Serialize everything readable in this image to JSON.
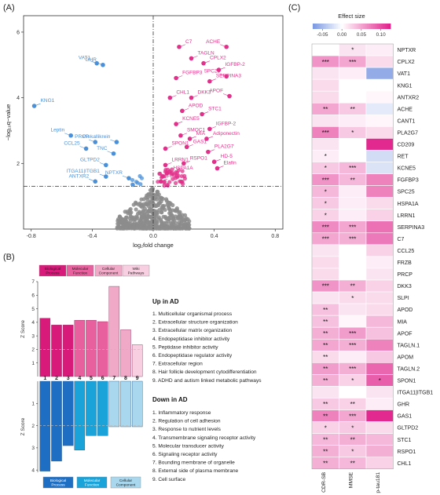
{
  "panel_labels": {
    "a": "(A)",
    "b": "(B)",
    "c": "(C)"
  },
  "colors": {
    "up": "#e0308a",
    "down": "#4a90d9",
    "ns": "#8c8c8c",
    "up_bars": [
      "#d81b7a",
      "#e8609d",
      "#f1a9c8",
      "#f7cfe0"
    ],
    "down_bars": [
      "#1e6fc4",
      "#1aa3d9",
      "#a9d8ee"
    ]
  },
  "chart_data": [
    {
      "panel": "A",
      "type": "scatter",
      "title": "",
      "xlabel": "log₂fold change",
      "ylabel": "−log₁₀q−value",
      "xlim": [
        -0.85,
        0.85
      ],
      "ylim": [
        0,
        6.5
      ],
      "xticks": [
        -0.8,
        -0.4,
        0.0,
        0.4,
        0.8
      ],
      "xtick_labels": [
        "-0.8",
        "-0.4",
        "0.0",
        "0.4",
        "0.8"
      ],
      "yticks": [
        2,
        4,
        6
      ],
      "ytick_labels": [
        "2",
        "4",
        "6"
      ],
      "threshold_y": 1.3,
      "threshold_x": 0,
      "points_up": [
        {
          "label": "C7",
          "x": 0.17,
          "y": 5.55
        },
        {
          "label": "ACHE",
          "x": 0.48,
          "y": 5.55
        },
        {
          "label": "CPLX2",
          "x": 0.33,
          "y": 5.05
        },
        {
          "label": "TAGLN",
          "x": 0.25,
          "y": 5.2
        },
        {
          "label": "IGFBP-2",
          "x": 0.43,
          "y": 4.85
        },
        {
          "label": "SPC25",
          "x": 0.48,
          "y": 4.65
        },
        {
          "label": "FGFBP3",
          "x": 0.15,
          "y": 4.6
        },
        {
          "label": "SERPINA3",
          "x": 0.37,
          "y": 4.5
        },
        {
          "label": "APOF",
          "x": 0.5,
          "y": 4.05
        },
        {
          "label": "CHL1",
          "x": 0.11,
          "y": 4.0
        },
        {
          "label": "DKK3",
          "x": 0.25,
          "y": 4.0
        },
        {
          "label": "APOD",
          "x": 0.19,
          "y": 3.6
        },
        {
          "label": "STC1",
          "x": 0.32,
          "y": 3.5
        },
        {
          "label": "KCNE5",
          "x": 0.15,
          "y": 3.2
        },
        {
          "label": "IGFBP-2",
          "x": 0.37,
          "y": 3.05
        },
        {
          "label": "SMOC1",
          "x": 0.18,
          "y": 2.85
        },
        {
          "label": "MIA",
          "x": 0.24,
          "y": 2.75
        },
        {
          "label": "Adiponectin",
          "x": 0.35,
          "y": 2.75
        },
        {
          "label": "SPON1",
          "x": 0.08,
          "y": 2.45
        },
        {
          "label": "GAS1",
          "x": 0.22,
          "y": 2.5
        },
        {
          "label": "PLA2G7",
          "x": 0.36,
          "y": 2.35
        },
        {
          "label": "LRRN1",
          "x": 0.08,
          "y": 1.95
        },
        {
          "label": "RSPO1",
          "x": 0.2,
          "y": 2.0
        },
        {
          "label": "HD-5",
          "x": 0.4,
          "y": 2.05
        },
        {
          "label": "Elafin",
          "x": 0.42,
          "y": 1.85
        },
        {
          "label": "HSPA1A",
          "x": 0.09,
          "y": 1.7
        },
        {
          "label": "FRZB",
          "x": 0.05,
          "y": 1.45
        }
      ],
      "points_down": [
        {
          "label": "KNG1",
          "x": -0.78,
          "y": 3.75
        },
        {
          "label": "VAT1",
          "x": -0.37,
          "y": 5.05
        },
        {
          "label": "GHR",
          "x": -0.33,
          "y": 5.0
        },
        {
          "label": "Prekallikrein",
          "x": -0.24,
          "y": 2.65
        },
        {
          "label": "Leptin",
          "x": -0.54,
          "y": 2.85
        },
        {
          "label": "PRCP",
          "x": -0.38,
          "y": 2.65
        },
        {
          "label": "CCL25",
          "x": -0.44,
          "y": 2.45
        },
        {
          "label": "TNC",
          "x": -0.26,
          "y": 2.3
        },
        {
          "label": "GLTPD2",
          "x": -0.31,
          "y": 1.95
        },
        {
          "label": "ITGA11|ITGB1",
          "x": -0.31,
          "y": 1.6
        },
        {
          "label": "ANTXR2",
          "x": -0.38,
          "y": 1.45
        },
        {
          "label": "NPTXR",
          "x": -0.16,
          "y": 1.55
        }
      ]
    },
    {
      "panel": "B",
      "type": "bar",
      "ylabel": "Z Score",
      "categories": [
        "1",
        "2",
        "3",
        "4",
        "5",
        "6",
        "7",
        "8",
        "9"
      ],
      "up": {
        "section_title": "Up in AD",
        "values": [
          4.3,
          3.8,
          3.8,
          4.15,
          4.15,
          4.05,
          6.65,
          3.45,
          2.35
        ],
        "class": [
          "Biological Process",
          "Biological Process",
          "Biological Process",
          "Molecular Function",
          "Molecular Function",
          "Molecular Function",
          "Cellular Component",
          "Cellular Component",
          "Wiki Pathways"
        ],
        "ylim": [
          0,
          7
        ],
        "yticks": [
          "1",
          "2",
          "3",
          "4",
          "5",
          "6",
          "7"
        ],
        "legend": [
          "Biological Process",
          "Molecular Function",
          "Cellular Component",
          "Wiki Pathways"
        ],
        "terms": [
          "1. Multicellular organismal process",
          "2. Extracellular structure organization",
          "3. Extracellular matrix organization",
          "4. Endopeptidase inhibitor activity",
          "5. Peptidase inhibitor activity",
          "6. Endopeptidase regulator activity",
          "7. Extracellular region",
          "8. Hair follicle development cytodifferentiation",
          "9. ADHD and autism linked metabolic pathways"
        ]
      },
      "down": {
        "section_title": "Down in AD",
        "values": [
          4.05,
          3.6,
          2.9,
          3.1,
          2.45,
          2.45,
          2.05,
          2.05,
          2.05
        ],
        "class": [
          "Biological Process",
          "Biological Process",
          "Biological Process",
          "Molecular Function",
          "Molecular Function",
          "Molecular Function",
          "Cellular Component",
          "Cellular Component",
          "Cellular Component"
        ],
        "ylim": [
          0,
          4.1
        ],
        "yticks": [
          "1",
          "2",
          "3",
          "4"
        ],
        "legend": [
          "Biological Process",
          "Molecular Function",
          "Cellular Component"
        ],
        "terms": [
          "1. Inflammatory response",
          "2. Regulation of cell adhesion",
          "3. Response to nutrient levels",
          "4. Transmembrane signaling receptor activity",
          "5. Molecular transducer activity",
          "6. Signaling receptor activity",
          "7. Bounding membrane of organelle",
          "8. External side of plasma membrane",
          "9. Cell surface"
        ]
      },
      "threshold_z": 2
    },
    {
      "panel": "C",
      "type": "heatmap",
      "title": "Effect size",
      "legend_ticks": [
        "-0.05",
        "0.00",
        "0.05",
        "0.10"
      ],
      "legend_range": [
        -0.075,
        0.125
      ],
      "columns": [
        "CDR-SB",
        "MMSE",
        "p-tau181"
      ],
      "rows": [
        "NPTXR",
        "CPLX2",
        "VAT1",
        "KNG1",
        "ANTXR2",
        "ACHE",
        "CANT1",
        "PLA2G7",
        "CD209",
        "RET",
        "KCNE5",
        "FGFBP3",
        "SPC25",
        "HSPA1A",
        "LRRN1",
        "SERPINA3",
        "C7",
        "CCL25",
        "FRZB",
        "PRCP",
        "DKK3",
        "SLPI",
        "APOD",
        "MIA",
        "APOF",
        "TAGLN.1",
        "APOM",
        "TAGLN.2",
        "SPON1",
        "ITGA11|ITGB1",
        "GHR",
        "GAS1",
        "GLTPD2",
        "STC1",
        "RSPO1",
        "CHL1"
      ],
      "values": [
        [
          0.0,
          0.015,
          0.01
        ],
        [
          0.06,
          0.05,
          0.02
        ],
        [
          0.015,
          0.01,
          -0.06
        ],
        [
          0.02,
          0.0,
          0.0
        ],
        [
          0.02,
          0.0,
          0.005
        ],
        [
          0.05,
          0.03,
          -0.015
        ],
        [
          0.015,
          0.01,
          0.005
        ],
        [
          0.07,
          0.03,
          0.02
        ],
        [
          0.015,
          0.0,
          0.12
        ],
        [
          0.01,
          0.0,
          -0.025
        ],
        [
          0.03,
          0.04,
          -0.02
        ],
        [
          0.06,
          0.04,
          0.07
        ],
        [
          0.04,
          0.01,
          0.07
        ],
        [
          0.03,
          0.01,
          0.02
        ],
        [
          0.025,
          0.01,
          0.025
        ],
        [
          0.065,
          0.05,
          0.08
        ],
        [
          0.05,
          0.045,
          0.075
        ],
        [
          0.015,
          0.0,
          0.025
        ],
        [
          0.02,
          0.0,
          0.01
        ],
        [
          0.02,
          0.0,
          0.015
        ],
        [
          0.06,
          0.045,
          0.025
        ],
        [
          0.015,
          0.02,
          0.02
        ],
        [
          0.035,
          0.015,
          0.02
        ],
        [
          0.035,
          0.005,
          0.04
        ],
        [
          0.045,
          0.055,
          0.035
        ],
        [
          0.05,
          0.045,
          0.07
        ],
        [
          0.02,
          0.01,
          0.03
        ],
        [
          0.055,
          0.045,
          0.085
        ],
        [
          0.045,
          0.025,
          0.09
        ],
        [
          0.015,
          0.0,
          0.015
        ],
        [
          0.03,
          0.025,
          0.01
        ],
        [
          0.07,
          0.05,
          0.12
        ],
        [
          0.025,
          0.03,
          0.02
        ],
        [
          0.04,
          0.045,
          0.04
        ],
        [
          0.045,
          0.03,
          0.045
        ],
        [
          0.045,
          0.04,
          0.025
        ]
      ],
      "stars": [
        [
          "",
          "*",
          ""
        ],
        [
          "***",
          "***",
          ""
        ],
        [
          "",
          "",
          ""
        ],
        [
          "",
          "",
          ""
        ],
        [
          "",
          "",
          ""
        ],
        [
          "**",
          "**",
          ""
        ],
        [
          "",
          "",
          ""
        ],
        [
          "***",
          "*",
          ""
        ],
        [
          "",
          "",
          ""
        ],
        [
          "*",
          "",
          ""
        ],
        [
          "*",
          "***",
          ""
        ],
        [
          "***",
          "**",
          ""
        ],
        [
          "*",
          "",
          ""
        ],
        [
          "*",
          "",
          ""
        ],
        [
          "*",
          "",
          ""
        ],
        [
          "***",
          "***",
          ""
        ],
        [
          "***",
          "***",
          ""
        ],
        [
          "",
          "",
          ""
        ],
        [
          "",
          "",
          ""
        ],
        [
          "",
          "",
          ""
        ],
        [
          "***",
          "**",
          ""
        ],
        [
          "",
          "*",
          ""
        ],
        [
          "**",
          "",
          ""
        ],
        [
          "**",
          "",
          ""
        ],
        [
          "**",
          "***",
          ""
        ],
        [
          "**",
          "***",
          ""
        ],
        [
          "**",
          "",
          ""
        ],
        [
          "**",
          "***",
          ""
        ],
        [
          "**",
          "*",
          "*"
        ],
        [
          "",
          "",
          ""
        ],
        [
          "**",
          "**",
          ""
        ],
        [
          "**",
          "***",
          ""
        ],
        [
          "*",
          "*",
          ""
        ],
        [
          "**",
          "**",
          ""
        ],
        [
          "**",
          "*",
          ""
        ],
        [
          "**",
          "**",
          ""
        ]
      ]
    }
  ]
}
